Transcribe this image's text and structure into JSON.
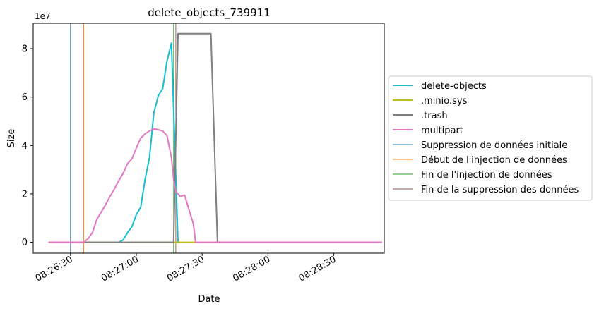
{
  "chart_data": {
    "type": "line",
    "title": "delete_objects_739911",
    "xlabel": "Date",
    "ylabel": "Size",
    "y_exponent_label": "1e7",
    "xlim": [
      "08:26:13",
      "08:28:53"
    ],
    "ylim": [
      -0.45,
      9.05
    ],
    "y_scale": 10000000,
    "x_ticks": [
      {
        "t": "08:26:30",
        "label": "08:26:30"
      },
      {
        "t": "08:27:00",
        "label": "08:27:00"
      },
      {
        "t": "08:27:30",
        "label": "08:27:30"
      },
      {
        "t": "08:28:00",
        "label": "08:28:00"
      },
      {
        "t": "08:28:30",
        "label": "08:28:30"
      }
    ],
    "y_ticks": [
      0,
      2,
      4,
      6,
      8
    ],
    "grid": false,
    "legend_position": "right",
    "series": [
      {
        "name": "delete-objects",
        "color": "#17becf",
        "points": [
          [
            "08:26:20",
            0
          ],
          [
            "08:26:45",
            0
          ],
          [
            "08:26:52",
            0
          ],
          [
            "08:26:54",
            0.1
          ],
          [
            "08:26:56",
            0.4
          ],
          [
            "08:26:58",
            0.65
          ],
          [
            "08:27:00",
            1.15
          ],
          [
            "08:27:02",
            1.45
          ],
          [
            "08:27:04",
            2.6
          ],
          [
            "08:27:06",
            3.5
          ],
          [
            "08:27:08",
            5.35
          ],
          [
            "08:27:10",
            6.05
          ],
          [
            "08:27:12",
            6.35
          ],
          [
            "08:27:14",
            7.5
          ],
          [
            "08:27:16",
            8.23
          ],
          [
            "08:27:19",
            0
          ]
        ]
      },
      {
        "name": ".minio.sys",
        "color": "#bcbd22",
        "points": [
          [
            "08:26:20",
            0
          ],
          [
            "08:28:52",
            0
          ]
        ]
      },
      {
        "name": ".trash",
        "color": "#7f7f7f",
        "points": [
          [
            "08:26:20",
            0
          ],
          [
            "08:27:17",
            0
          ],
          [
            "08:27:19",
            8.62
          ],
          [
            "08:27:34",
            8.62
          ],
          [
            "08:27:37",
            0
          ],
          [
            "08:28:52",
            0
          ]
        ]
      },
      {
        "name": "multipart",
        "color": "#e377c2",
        "points": [
          [
            "08:26:20",
            0
          ],
          [
            "08:26:36",
            0
          ],
          [
            "08:26:38",
            0.15
          ],
          [
            "08:26:40",
            0.4
          ],
          [
            "08:26:42",
            0.95
          ],
          [
            "08:26:44",
            1.25
          ],
          [
            "08:26:46",
            1.55
          ],
          [
            "08:26:48",
            1.9
          ],
          [
            "08:26:50",
            2.2
          ],
          [
            "08:26:52",
            2.55
          ],
          [
            "08:26:54",
            2.85
          ],
          [
            "08:26:56",
            3.25
          ],
          [
            "08:26:58",
            3.45
          ],
          [
            "08:27:00",
            3.9
          ],
          [
            "08:27:02",
            4.3
          ],
          [
            "08:27:04",
            4.48
          ],
          [
            "08:27:06",
            4.6
          ],
          [
            "08:27:08",
            4.69
          ],
          [
            "08:27:10",
            4.65
          ],
          [
            "08:27:12",
            4.6
          ],
          [
            "08:27:14",
            4.4
          ],
          [
            "08:27:16",
            3.5
          ],
          [
            "08:27:17",
            2.6
          ],
          [
            "08:27:18",
            2.1
          ],
          [
            "08:27:20",
            1.9
          ],
          [
            "08:27:22",
            1.95
          ],
          [
            "08:27:24",
            1.35
          ],
          [
            "08:27:26",
            0.75
          ],
          [
            "08:27:27",
            0
          ],
          [
            "08:28:52",
            0
          ]
        ]
      }
    ],
    "vlines": [
      {
        "name": "Suppression de données initiale",
        "color": "#1f77b4",
        "t": "08:26:30"
      },
      {
        "name": "Début de l'injection de données",
        "color": "#ff7f0e",
        "t": "08:26:36"
      },
      {
        "name": "Fin de l'injection de données",
        "color": "#2ca02c",
        "t": "08:27:17"
      },
      {
        "name": "Fin de la suppression des données",
        "color": "#8c564b",
        "t": "08:27:18"
      }
    ]
  }
}
